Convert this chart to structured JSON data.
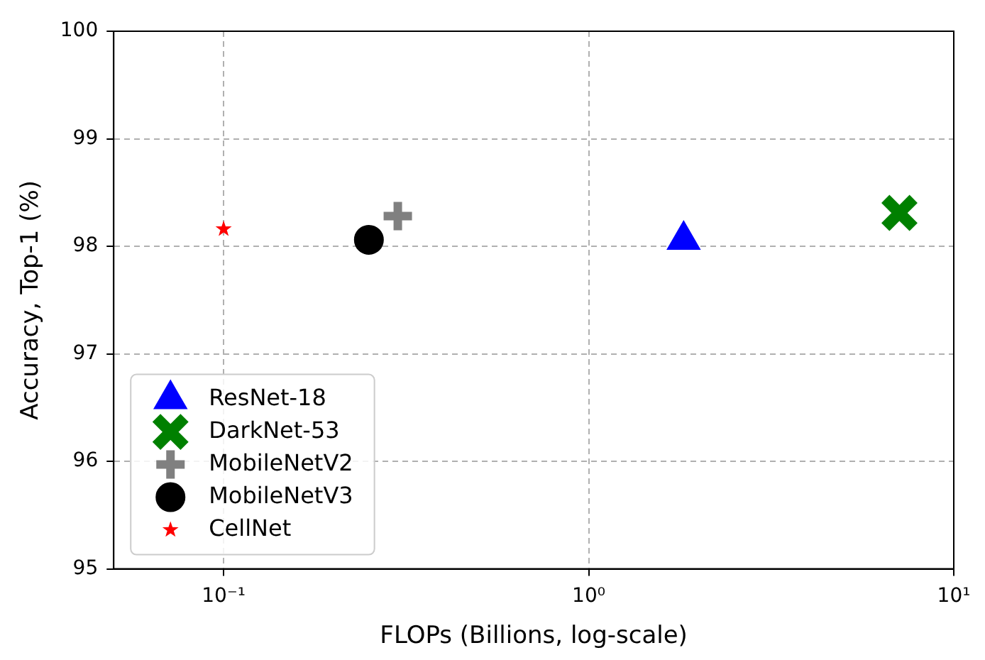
{
  "chart_data": {
    "type": "scatter",
    "xlabel": "FLOPs (Billions, log-scale)",
    "ylabel": "Accuracy, Top-1 (%)",
    "log": "x",
    "xlim": [
      0.05,
      10
    ],
    "xticks": [
      {
        "value": 0.1,
        "label": "10⁻¹"
      },
      {
        "value": 1,
        "label": "10⁰"
      },
      {
        "value": 10,
        "label": "10¹"
      }
    ],
    "ylim": [
      95,
      100
    ],
    "yticks": [
      95,
      96,
      97,
      98,
      99,
      100
    ],
    "grid": true,
    "legend": "bottom left",
    "series": [
      {
        "name": "ResNet-18",
        "color": "#0000ff",
        "marker": "triangle",
        "x": [
          1.82
        ],
        "values": [
          98.06
        ]
      },
      {
        "name": "DarkNet-53",
        "color": "#008000",
        "marker": "x",
        "x": [
          7.1
        ],
        "values": [
          98.31
        ]
      },
      {
        "name": "MobileNetV2",
        "color": "#808080",
        "marker": "cross",
        "x": [
          0.3
        ],
        "values": [
          98.28
        ]
      },
      {
        "name": "MobileNetV3",
        "color": "#000000",
        "marker": "circle",
        "x": [
          0.25
        ],
        "values": [
          98.06
        ]
      },
      {
        "name": "CellNet",
        "color": "#ff0000",
        "marker": "star",
        "x": [
          0.1
        ],
        "values": [
          98.16
        ]
      }
    ]
  }
}
